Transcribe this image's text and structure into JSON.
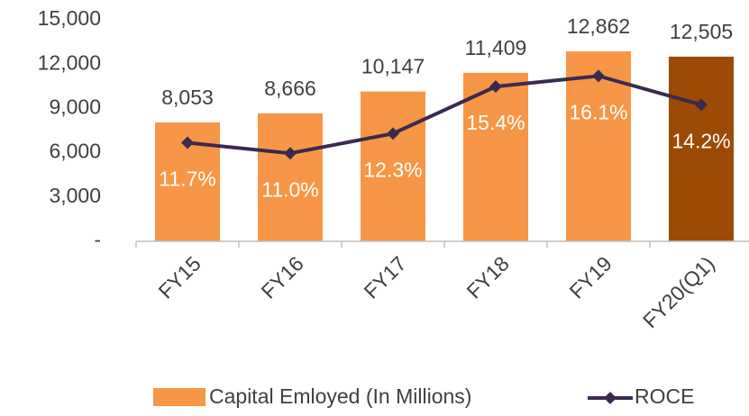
{
  "chart_data": {
    "type": "bar-line",
    "categories": [
      "FY15",
      "FY16",
      "FY17",
      "FY18",
      "FY19",
      "FY20(Q1)"
    ],
    "series": [
      {
        "name": "Capital Emloyed (In Millions)",
        "color": "#F79646",
        "colors": [
          "#F79646",
          "#F79646",
          "#F79646",
          "#F79646",
          "#F79646",
          "#9C4A06"
        ],
        "values": [
          8053,
          8666,
          10147,
          11409,
          12862,
          12505
        ],
        "value_labels": [
          "8,053",
          "8,666",
          "10,147",
          "11,409",
          "12,862",
          "12,505"
        ]
      },
      {
        "name": "ROCE",
        "color": "#3B2A4F",
        "axis": "y2",
        "values": [
          11.7,
          11.0,
          12.3,
          15.4,
          16.1,
          14.2
        ],
        "value_labels": [
          "11.7%",
          "11.0%",
          "12.3%",
          "15.4%",
          "16.1%",
          "14.2%"
        ]
      }
    ],
    "ylim": [
      0,
      15000
    ],
    "yticks": [
      {
        "value": 0,
        "label": "-"
      },
      {
        "value": 3000,
        "label": "3,000"
      },
      {
        "value": 6000,
        "label": "6,000"
      },
      {
        "value": 9000,
        "label": "9,000"
      },
      {
        "value": 12000,
        "label": "12,000"
      },
      {
        "value": 15000,
        "label": "15,000"
      }
    ],
    "y2lim": [
      5.2,
      19.8
    ],
    "grid": false,
    "legend": "bottom"
  }
}
